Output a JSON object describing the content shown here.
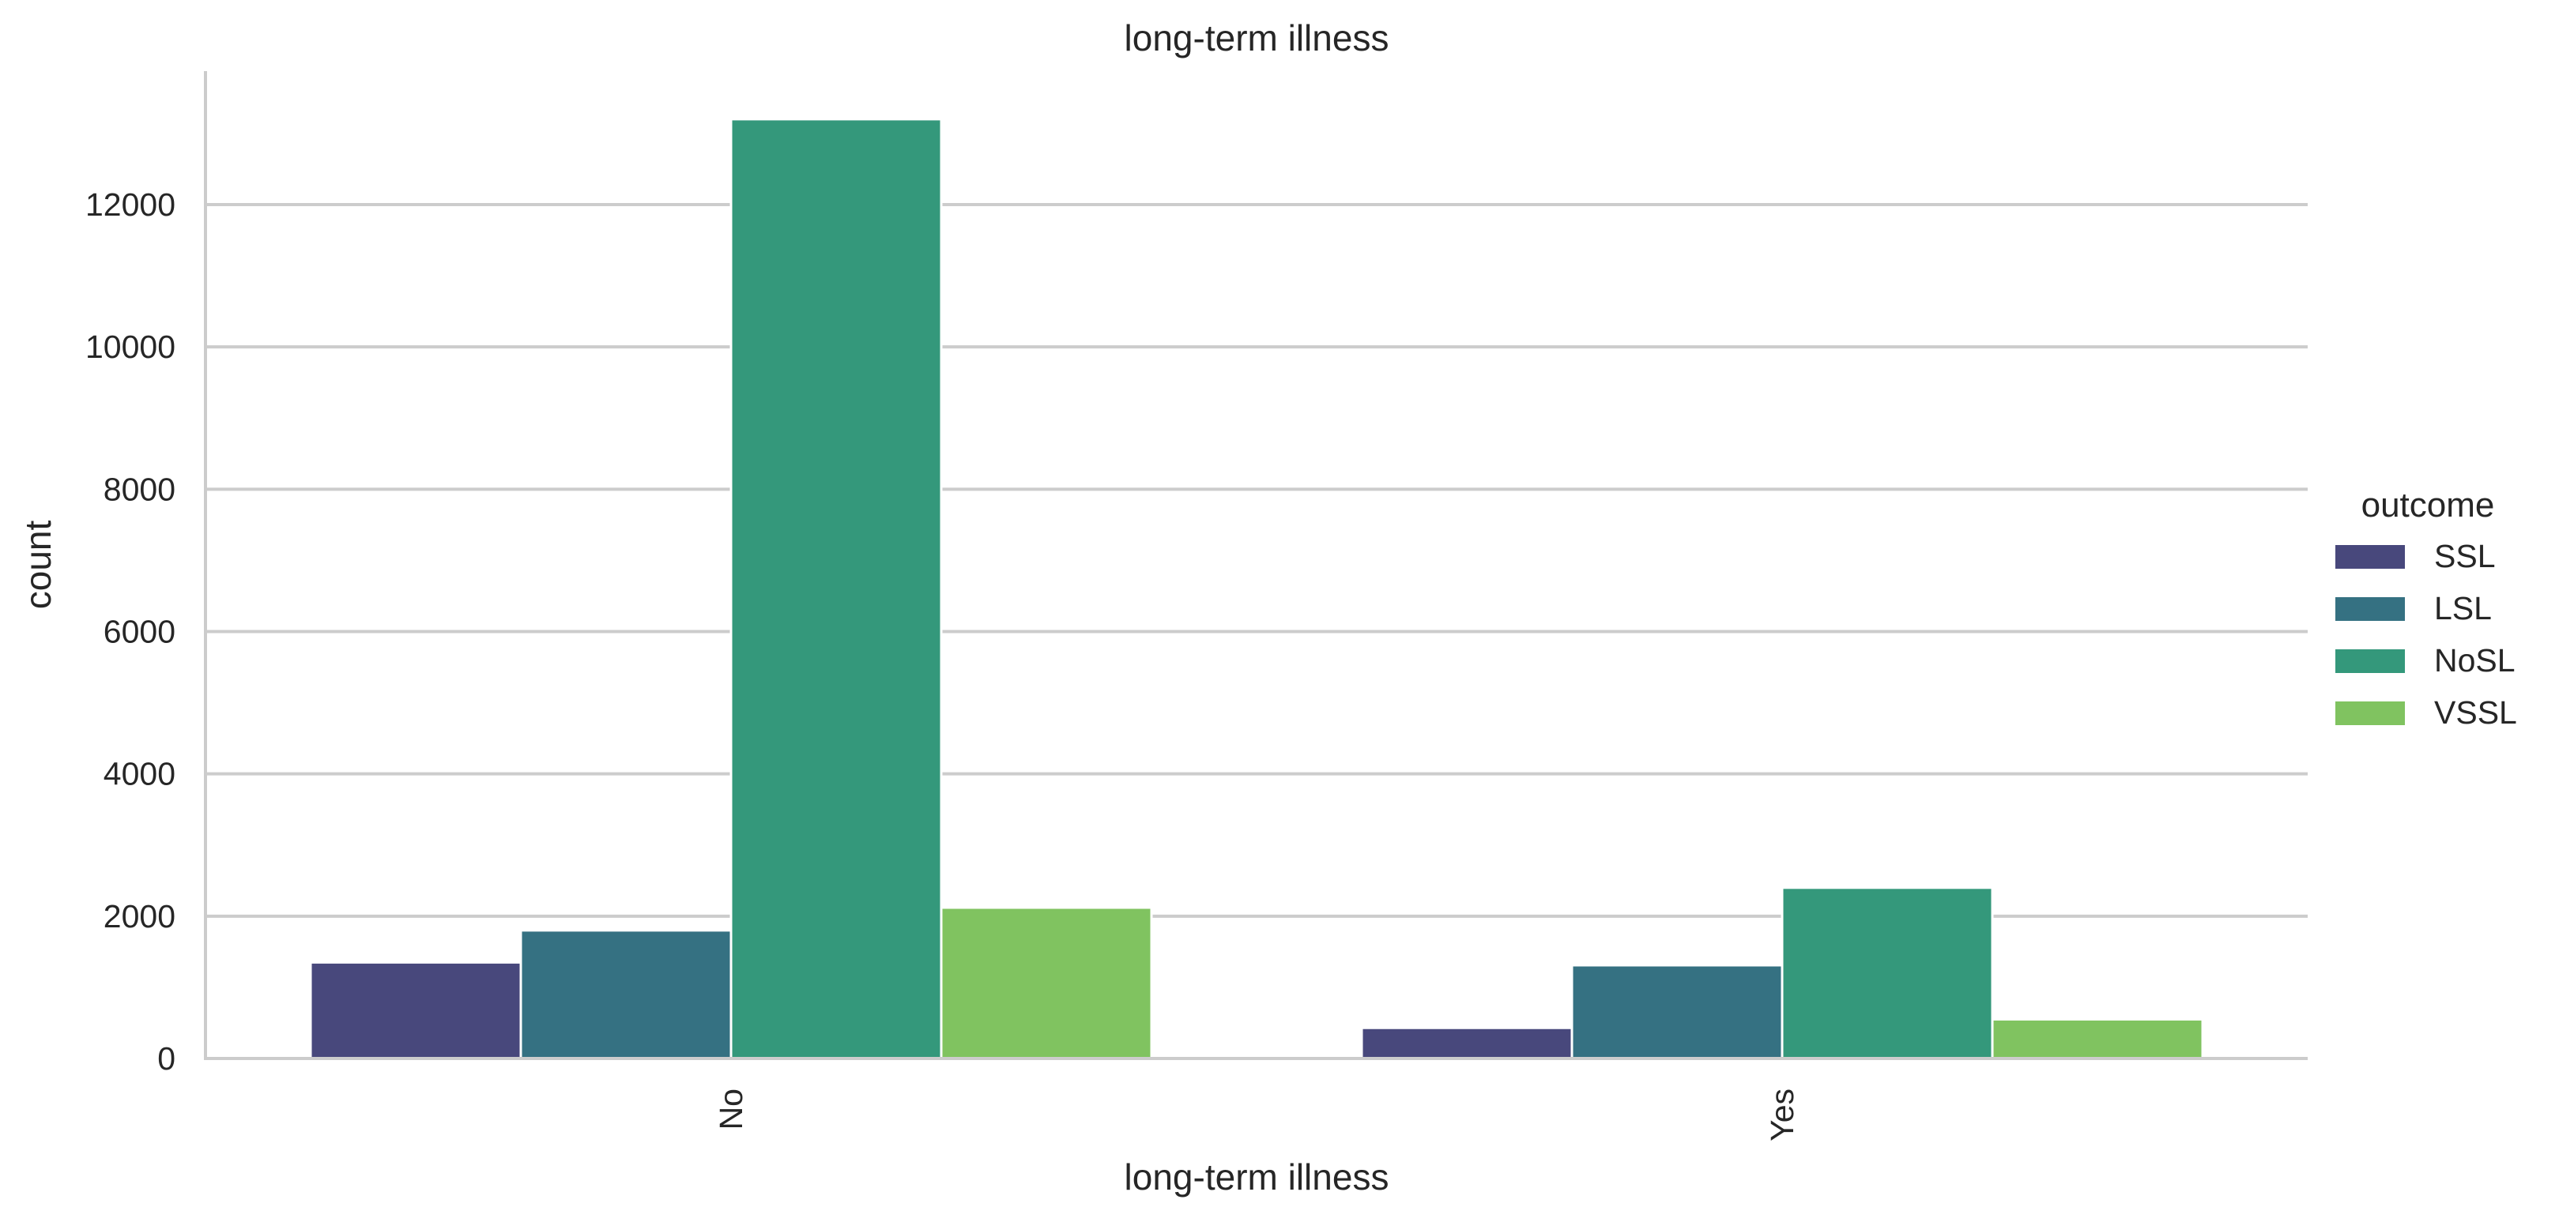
{
  "chart_data": {
    "type": "bar",
    "title": "long-term illness",
    "xlabel": "long-term illness",
    "ylabel": "count",
    "categories": [
      "No",
      "Yes"
    ],
    "ylim": [
      0,
      14000
    ],
    "yticks": [
      0,
      2000,
      4000,
      6000,
      8000,
      10000,
      12000
    ],
    "ytick_labels": [
      "0",
      "2000",
      "4000",
      "6000",
      "8000",
      "10000",
      "12000"
    ],
    "grid": "horizontal",
    "legend": {
      "title": "outcome",
      "position": "right"
    },
    "series": [
      {
        "name": "SSL",
        "color": "#48487c",
        "values": [
          1350,
          430
        ]
      },
      {
        "name": "LSL",
        "color": "#357182",
        "values": [
          1800,
          1310
        ]
      },
      {
        "name": "NoSL",
        "color": "#34987b",
        "values": [
          13200,
          2400
        ]
      },
      {
        "name": "VSSL",
        "color": "#80c360",
        "values": [
          2120,
          550
        ]
      }
    ]
  }
}
